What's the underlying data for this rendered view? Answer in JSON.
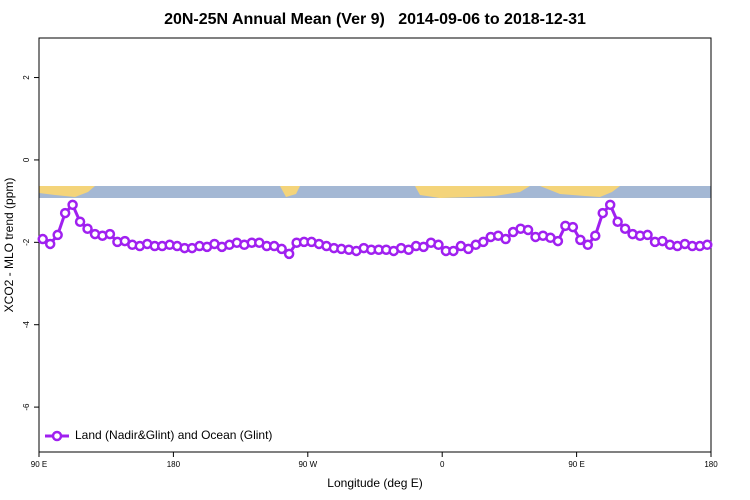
{
  "chart_data": {
    "type": "line",
    "title": "20N-25N Annual Mean (Ver 9)   2014-09-06 to 2018-12-31",
    "x_label": "Longitude (deg E)",
    "y_label": "XCO2 - MLO trend (ppm)",
    "xlim": [
      90,
      540
    ],
    "ylim": [
      -7.09,
      2.96
    ],
    "xticks": [
      {
        "value": 90,
        "label": "90 E"
      },
      180,
      {
        "value": 270,
        "label": "90 W"
      },
      {
        "value": 360,
        "label": "0"
      },
      {
        "value": 450,
        "label": "90 E"
      },
      {
        "value": 540,
        "label": "180"
      }
    ],
    "yticks": [
      -6,
      -4,
      -2,
      0,
      2
    ],
    "legend_position": "bottom-left",
    "x": [
      92.5,
      97.5,
      102.5,
      107.5,
      112.5,
      117.5,
      122.5,
      127.5,
      132.5,
      137.5,
      142.5,
      147.5,
      152.5,
      157.5,
      162.5,
      167.5,
      172.5,
      177.5,
      182.5,
      187.5,
      192.5,
      197.5,
      202.5,
      207.5,
      212.5,
      217.5,
      222.5,
      227.5,
      232.5,
      237.5,
      242.5,
      247.5,
      252.5,
      257.5,
      262.5,
      267.5,
      272.5,
      277.5,
      282.5,
      287.5,
      292.5,
      297.5,
      302.5,
      307.5,
      312.5,
      317.5,
      322.5,
      327.5,
      332.5,
      337.5,
      342.5,
      347.5,
      352.5,
      357.5,
      362.5,
      367.5,
      372.5,
      377.5,
      382.5,
      387.5,
      392.5,
      397.5,
      402.5,
      407.5,
      412.5,
      417.5,
      422.5,
      427.5,
      432.5,
      437.5,
      442.5,
      447.5,
      452.5,
      457.5,
      462.5,
      467.5,
      472.5,
      477.5,
      482.5,
      487.5,
      492.5,
      497.5,
      502.5,
      507.5,
      512.5,
      517.5,
      522.5,
      527.5,
      532.5,
      537.5
    ],
    "series": [
      {
        "name": "Land (Nadir&Glint) and Ocean (Glint)",
        "color": "#a020f0",
        "values": [
          -1.92,
          -2.04,
          -1.82,
          -1.29,
          -1.09,
          -1.5,
          -1.67,
          -1.8,
          -1.84,
          -1.8,
          -1.99,
          -1.97,
          -2.06,
          -2.09,
          -2.04,
          -2.09,
          -2.09,
          -2.06,
          -2.09,
          -2.14,
          -2.14,
          -2.09,
          -2.11,
          -2.04,
          -2.11,
          -2.06,
          -2.01,
          -2.06,
          -2.01,
          -2.01,
          -2.09,
          -2.09,
          -2.16,
          -2.28,
          -2.01,
          -1.99,
          -1.99,
          -2.04,
          -2.09,
          -2.14,
          -2.16,
          -2.18,
          -2.21,
          -2.14,
          -2.18,
          -2.18,
          -2.18,
          -2.21,
          -2.14,
          -2.18,
          -2.09,
          -2.11,
          -2.01,
          -2.06,
          -2.21,
          -2.21,
          -2.09,
          -2.16,
          -2.06,
          -1.99,
          -1.87,
          -1.84,
          -1.92,
          -1.75,
          -1.67,
          -1.7,
          -1.87,
          -1.84,
          -1.89,
          -1.97,
          -1.6,
          -1.63,
          -1.94,
          -2.06,
          -1.84,
          -1.29,
          -1.09,
          -1.5,
          -1.67,
          -1.8,
          -1.84,
          -1.82,
          -1.99,
          -1.97,
          -2.06,
          -2.09,
          -2.04,
          -2.09,
          -2.09,
          -2.06
        ]
      }
    ]
  }
}
